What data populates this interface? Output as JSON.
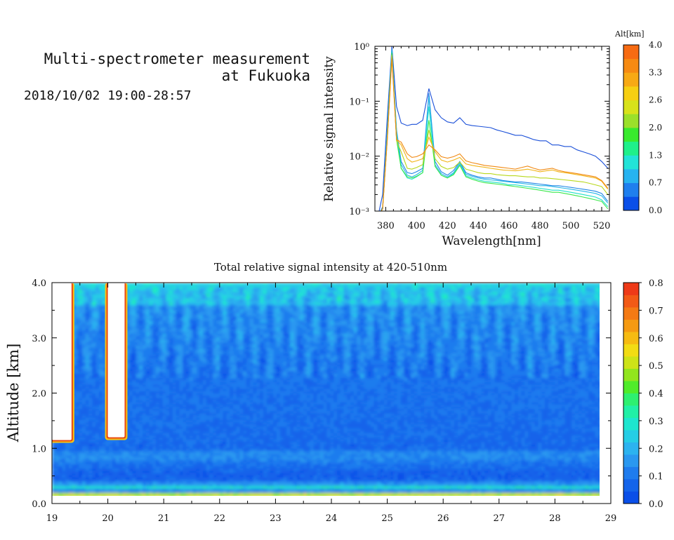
{
  "header": {
    "title_line1": "Multi-spectrometer measurement",
    "title_line2": "at Fukuoka",
    "date": "2018/10/02 19:00-28:57"
  },
  "chart_data": [
    {
      "type": "line",
      "title": "",
      "xlabel": "Wavelength[nm]",
      "ylabel": "Relative signal intensity",
      "xlim": [
        373,
        525
      ],
      "ylim": [
        0.001,
        1
      ],
      "yscale": "log",
      "xticks": [
        380,
        400,
        420,
        440,
        460,
        480,
        500,
        520
      ],
      "yticks": [
        {
          "value": 0.001,
          "label": "10⁻³"
        },
        {
          "value": 0.01,
          "label": "10⁻²"
        },
        {
          "value": 0.1,
          "label": "10⁻¹"
        },
        {
          "value": 1,
          "label": "10⁰"
        }
      ],
      "colorbar": {
        "label": "Alt[km]",
        "ticks": [
          "0.0",
          "0.7",
          "1.3",
          "2.0",
          "2.6",
          "3.3",
          "4.0"
        ],
        "colors": [
          "#0a4fe8",
          "#1f7fee",
          "#27b3f0",
          "#22e3d8",
          "#1ff08a",
          "#39ea2e",
          "#9be02a",
          "#d8e21a",
          "#f6cf12",
          "#f7a914",
          "#f68a12",
          "#f76b12"
        ]
      },
      "x": [
        375,
        378,
        381,
        384,
        387,
        390,
        394,
        397,
        400,
        404,
        408,
        412,
        416,
        420,
        424,
        428,
        432,
        436,
        440,
        444,
        448,
        452,
        456,
        460,
        464,
        468,
        472,
        476,
        480,
        484,
        488,
        492,
        496,
        500,
        504,
        508,
        512,
        516,
        520,
        524
      ],
      "series": [
        {
          "altitude_km": 0.2,
          "color": "#1a4fd8",
          "values": [
            0.0008,
            0.002,
            0.05,
            1.0,
            0.08,
            0.04,
            0.036,
            0.038,
            0.038,
            0.045,
            0.17,
            0.07,
            0.05,
            0.042,
            0.04,
            0.05,
            0.038,
            0.036,
            0.035,
            0.034,
            0.033,
            0.03,
            0.028,
            0.026,
            0.024,
            0.024,
            0.022,
            0.02,
            0.019,
            0.019,
            0.016,
            0.016,
            0.015,
            0.015,
            0.013,
            0.012,
            0.011,
            0.01,
            0.008,
            0.006
          ]
        },
        {
          "altitude_km": 0.3,
          "color": "#1f86e6",
          "values": [
            0.0008,
            0.0012,
            0.03,
            0.9,
            0.03,
            0.008,
            0.005,
            0.0048,
            0.0052,
            0.006,
            0.14,
            0.008,
            0.0052,
            0.0045,
            0.0055,
            0.008,
            0.005,
            0.0045,
            0.0042,
            0.004,
            0.004,
            0.0038,
            0.0036,
            0.0035,
            0.0034,
            0.0034,
            0.0033,
            0.0032,
            0.0031,
            0.003,
            0.0029,
            0.0029,
            0.0028,
            0.0027,
            0.0026,
            0.0025,
            0.0024,
            0.0023,
            0.0021,
            0.0015
          ]
        },
        {
          "altitude_km": 0.6,
          "color": "#27b6e8",
          "values": [
            0.0008,
            0.0011,
            0.028,
            0.85,
            0.028,
            0.007,
            0.0045,
            0.0042,
            0.0046,
            0.0055,
            0.12,
            0.007,
            0.0048,
            0.0042,
            0.005,
            0.0075,
            0.0047,
            0.0043,
            0.004,
            0.0038,
            0.0037,
            0.0036,
            0.0035,
            0.0034,
            0.0033,
            0.0032,
            0.0031,
            0.003,
            0.0029,
            0.0029,
            0.0028,
            0.0027,
            0.0026,
            0.0025,
            0.0024,
            0.0023,
            0.0022,
            0.0021,
            0.0019,
            0.0014
          ]
        },
        {
          "altitude_km": 1.2,
          "color": "#22e0c8",
          "values": [
            0.0008,
            0.0011,
            0.025,
            0.8,
            0.025,
            0.006,
            0.004,
            0.0038,
            0.0042,
            0.005,
            0.08,
            0.0065,
            0.0045,
            0.004,
            0.0048,
            0.007,
            0.0044,
            0.004,
            0.0037,
            0.0035,
            0.0034,
            0.0033,
            0.0032,
            0.003,
            0.003,
            0.0029,
            0.0028,
            0.0027,
            0.0026,
            0.0025,
            0.0024,
            0.0024,
            0.0023,
            0.0022,
            0.0021,
            0.002,
            0.0019,
            0.0018,
            0.0016,
            0.0012
          ]
        },
        {
          "altitude_km": 1.8,
          "color": "#3ae84a",
          "values": [
            0.0008,
            0.0011,
            0.022,
            0.75,
            0.02,
            0.006,
            0.0042,
            0.004,
            0.0043,
            0.005,
            0.045,
            0.0065,
            0.0045,
            0.004,
            0.0046,
            0.0068,
            0.0042,
            0.0038,
            0.0035,
            0.0033,
            0.0032,
            0.0031,
            0.003,
            0.0029,
            0.0028,
            0.0027,
            0.0026,
            0.0025,
            0.0024,
            0.0023,
            0.0022,
            0.0022,
            0.0021,
            0.002,
            0.0019,
            0.0018,
            0.0017,
            0.0016,
            0.0015,
            0.0011
          ]
        },
        {
          "altitude_km": 2.4,
          "color": "#b8d81c",
          "values": [
            0.0008,
            0.0011,
            0.02,
            0.7,
            0.019,
            0.012,
            0.006,
            0.0058,
            0.0062,
            0.007,
            0.03,
            0.009,
            0.0065,
            0.0058,
            0.0062,
            0.0078,
            0.0058,
            0.0054,
            0.005,
            0.0048,
            0.0048,
            0.0046,
            0.0045,
            0.0044,
            0.0044,
            0.0043,
            0.0042,
            0.0042,
            0.004,
            0.004,
            0.0039,
            0.0038,
            0.0037,
            0.0036,
            0.0035,
            0.0034,
            0.0032,
            0.003,
            0.0028,
            0.002
          ]
        },
        {
          "altitude_km": 3.0,
          "color": "#f2b416",
          "values": [
            0.0008,
            0.0011,
            0.02,
            0.65,
            0.02,
            0.016,
            0.009,
            0.0078,
            0.0082,
            0.009,
            0.022,
            0.012,
            0.0085,
            0.0078,
            0.0085,
            0.0095,
            0.0072,
            0.0068,
            0.0065,
            0.0063,
            0.006,
            0.0058,
            0.0056,
            0.0055,
            0.0054,
            0.0056,
            0.0058,
            0.0055,
            0.0052,
            0.0054,
            0.0056,
            0.0052,
            0.005,
            0.0048,
            0.0046,
            0.0044,
            0.0042,
            0.004,
            0.0035,
            0.0025
          ]
        },
        {
          "altitude_km": 3.6,
          "color": "#f18a14",
          "values": [
            0.0008,
            0.0011,
            0.02,
            0.6,
            0.02,
            0.018,
            0.011,
            0.0095,
            0.0098,
            0.011,
            0.016,
            0.013,
            0.0098,
            0.0092,
            0.0098,
            0.011,
            0.0082,
            0.0076,
            0.0072,
            0.0068,
            0.0066,
            0.0064,
            0.0062,
            0.006,
            0.0058,
            0.0062,
            0.0066,
            0.006,
            0.0056,
            0.0058,
            0.006,
            0.0055,
            0.0052,
            0.005,
            0.0048,
            0.0046,
            0.0044,
            0.0042,
            0.0036,
            0.0026
          ]
        }
      ]
    },
    {
      "type": "heatmap",
      "title": "Total relative signal intensity at 420-510nm",
      "xlabel": "",
      "ylabel": "Altitude [km]",
      "xlim": [
        19,
        29
      ],
      "ylim": [
        0,
        4
      ],
      "xticks": [
        19,
        20,
        21,
        22,
        23,
        24,
        25,
        26,
        27,
        28,
        29
      ],
      "yticks": [
        "0.0",
        "1.0",
        "2.0",
        "3.0",
        "4.0"
      ],
      "data_x_range": [
        19.0,
        28.8
      ],
      "colorbar": {
        "ticks": [
          "0.0",
          "0.1",
          "0.2",
          "0.3",
          "0.4",
          "0.5",
          "0.6",
          "0.7",
          "0.8"
        ],
        "colors": [
          "#0a4fe8",
          "#1464ea",
          "#1f7cee",
          "#2a98f0",
          "#2cb3ef",
          "#25cde5",
          "#1ee6cf",
          "#21f0a6",
          "#2ef070",
          "#50ec2a",
          "#92e51e",
          "#cde318",
          "#f2dc14",
          "#f6bb12",
          "#f59a12",
          "#f47a14",
          "#f25a16",
          "#ee3a18"
        ]
      },
      "saturated_regions": [
        {
          "x_range": [
            19.0,
            19.35
          ],
          "alt_range": [
            1.15,
            4.0
          ]
        },
        {
          "x_range": [
            20.0,
            20.3
          ],
          "alt_range": [
            1.2,
            4.0
          ]
        }
      ]
    }
  ]
}
